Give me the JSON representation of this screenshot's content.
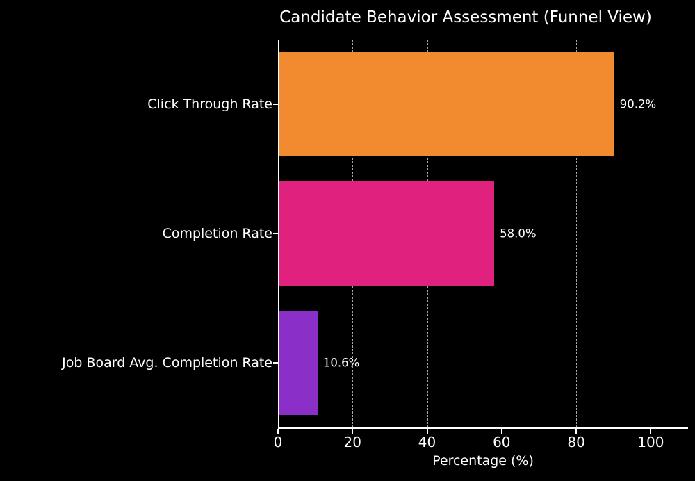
{
  "chart_data": {
    "type": "bar",
    "orientation": "horizontal",
    "title": "Candidate Behavior Assessment (Funnel View)",
    "categories": [
      "Click Through Rate",
      "Completion Rate",
      "Job Board Avg. Completion Rate"
    ],
    "values": [
      90.2,
      58.0,
      10.6
    ],
    "value_labels": [
      "90.2%",
      "58.0%",
      "10.6%"
    ],
    "bar_colors": [
      "#f28b30",
      "#e0217e",
      "#8b2fc9"
    ],
    "xlabel": "Percentage (%)",
    "xlim": [
      0,
      110
    ],
    "xticks": [
      0,
      20,
      40,
      60,
      80,
      100
    ],
    "grid": "dashed-vertical-gridlines",
    "legend": "none",
    "background_color": "#000000",
    "text_color": "#ffffff"
  }
}
